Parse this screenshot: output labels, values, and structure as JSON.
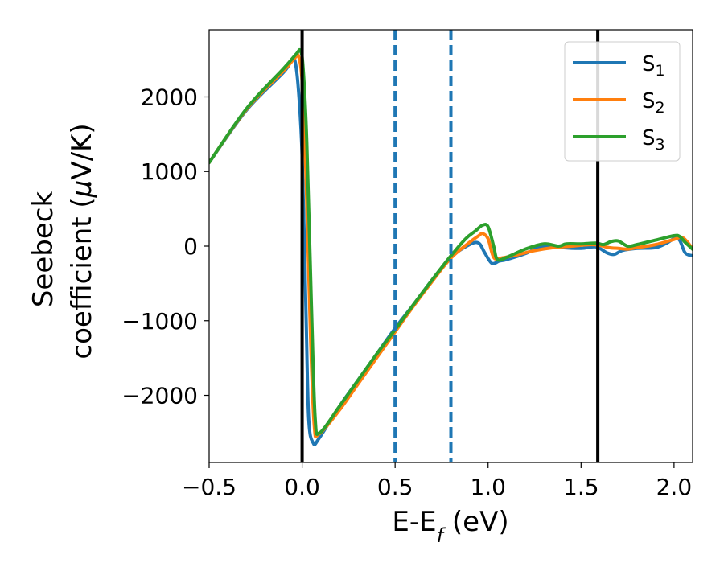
{
  "chart_data": {
    "type": "line",
    "xlabel": {
      "main": "E-E",
      "sub": "f",
      "unit": " (eV)"
    },
    "ylabel": {
      "line1": "Seebeck",
      "line2": "coefficient  (",
      "mu": "μ",
      "unit": "V/K)"
    },
    "xlim": [
      -0.5,
      2.1
    ],
    "ylim": [
      -2900,
      2900
    ],
    "xticks": [
      -0.5,
      0.0,
      0.5,
      1.0,
      1.5,
      2.0
    ],
    "xtick_labels": [
      "−0.5",
      "0.0",
      "0.5",
      "1.0",
      "1.5",
      "2.0"
    ],
    "yticks": [
      -2000,
      -1000,
      0,
      1000,
      2000
    ],
    "ytick_labels": [
      "−2000",
      "−1000",
      "0",
      "1000",
      "2000"
    ],
    "grid": false,
    "legend_position": "top-right",
    "vlines_solid": [
      0.0,
      1.59
    ],
    "vlines_dashed": [
      0.5,
      0.8
    ],
    "colors": {
      "s1": "#1f77b4",
      "s2": "#ff7f0e",
      "s3": "#2ca02c",
      "vline": "#000000",
      "dashed": "#1f77b4"
    },
    "series": [
      {
        "name": "S",
        "sub": "1",
        "color": "#1f77b4",
        "points": [
          [
            -0.5,
            1120
          ],
          [
            -0.3,
            1820
          ],
          [
            -0.1,
            2330
          ],
          [
            -0.06,
            2480
          ],
          [
            -0.04,
            2500
          ],
          [
            -0.02,
            2100
          ],
          [
            0.0,
            1200
          ],
          [
            0.02,
            -800
          ],
          [
            0.035,
            -2300
          ],
          [
            0.06,
            -2640
          ],
          [
            0.09,
            -2580
          ],
          [
            0.2,
            -2150
          ],
          [
            0.3,
            -1800
          ],
          [
            0.4,
            -1450
          ],
          [
            0.5,
            -1100
          ],
          [
            0.6,
            -780
          ],
          [
            0.7,
            -450
          ],
          [
            0.8,
            -150
          ],
          [
            0.9,
            20
          ],
          [
            0.95,
            40
          ],
          [
            0.98,
            -80
          ],
          [
            1.02,
            -230
          ],
          [
            1.06,
            -200
          ],
          [
            1.1,
            -180
          ],
          [
            1.2,
            -100
          ],
          [
            1.28,
            -10
          ],
          [
            1.35,
            0
          ],
          [
            1.4,
            -20
          ],
          [
            1.5,
            -30
          ],
          [
            1.58,
            -10
          ],
          [
            1.64,
            -90
          ],
          [
            1.68,
            -110
          ],
          [
            1.72,
            -60
          ],
          [
            1.8,
            -30
          ],
          [
            1.9,
            -20
          ],
          [
            1.96,
            40
          ],
          [
            2.0,
            100
          ],
          [
            2.03,
            80
          ],
          [
            2.06,
            -90
          ],
          [
            2.1,
            -130
          ]
        ]
      },
      {
        "name": "S",
        "sub": "2",
        "color": "#ff7f0e",
        "points": [
          [
            -0.5,
            1120
          ],
          [
            -0.3,
            1830
          ],
          [
            -0.1,
            2350
          ],
          [
            -0.04,
            2520
          ],
          [
            -0.02,
            2550
          ],
          [
            0.0,
            2200
          ],
          [
            0.02,
            1000
          ],
          [
            0.045,
            -1200
          ],
          [
            0.065,
            -2400
          ],
          [
            0.09,
            -2520
          ],
          [
            0.2,
            -2200
          ],
          [
            0.3,
            -1850
          ],
          [
            0.4,
            -1500
          ],
          [
            0.5,
            -1150
          ],
          [
            0.6,
            -800
          ],
          [
            0.7,
            -470
          ],
          [
            0.8,
            -160
          ],
          [
            0.9,
            50
          ],
          [
            0.95,
            140
          ],
          [
            0.97,
            170
          ],
          [
            1.0,
            100
          ],
          [
            1.03,
            -150
          ],
          [
            1.07,
            -160
          ],
          [
            1.15,
            -120
          ],
          [
            1.25,
            -60
          ],
          [
            1.35,
            -20
          ],
          [
            1.45,
            0
          ],
          [
            1.55,
            20
          ],
          [
            1.6,
            10
          ],
          [
            1.65,
            -20
          ],
          [
            1.7,
            -30
          ],
          [
            1.75,
            -40
          ],
          [
            1.8,
            -20
          ],
          [
            1.9,
            20
          ],
          [
            2.0,
            90
          ],
          [
            2.04,
            120
          ],
          [
            2.07,
            60
          ],
          [
            2.1,
            -40
          ]
        ]
      },
      {
        "name": "S",
        "sub": "3",
        "color": "#2ca02c",
        "points": [
          [
            -0.5,
            1120
          ],
          [
            -0.3,
            1840
          ],
          [
            -0.1,
            2380
          ],
          [
            -0.03,
            2580
          ],
          [
            -0.01,
            2620
          ],
          [
            0.005,
            2400
          ],
          [
            0.025,
            1400
          ],
          [
            0.05,
            -800
          ],
          [
            0.07,
            -2300
          ],
          [
            0.095,
            -2500
          ],
          [
            0.2,
            -2150
          ],
          [
            0.3,
            -1800
          ],
          [
            0.4,
            -1450
          ],
          [
            0.5,
            -1120
          ],
          [
            0.6,
            -780
          ],
          [
            0.7,
            -450
          ],
          [
            0.8,
            -130
          ],
          [
            0.88,
            100
          ],
          [
            0.93,
            200
          ],
          [
            0.97,
            280
          ],
          [
            1.0,
            260
          ],
          [
            1.03,
            0
          ],
          [
            1.05,
            -180
          ],
          [
            1.1,
            -150
          ],
          [
            1.2,
            -40
          ],
          [
            1.3,
            30
          ],
          [
            1.38,
            0
          ],
          [
            1.42,
            30
          ],
          [
            1.5,
            30
          ],
          [
            1.58,
            40
          ],
          [
            1.62,
            20
          ],
          [
            1.66,
            60
          ],
          [
            1.7,
            70
          ],
          [
            1.75,
            0
          ],
          [
            1.8,
            20
          ],
          [
            1.9,
            80
          ],
          [
            2.0,
            140
          ],
          [
            2.03,
            130
          ],
          [
            2.06,
            50
          ],
          [
            2.1,
            -40
          ]
        ]
      }
    ]
  }
}
